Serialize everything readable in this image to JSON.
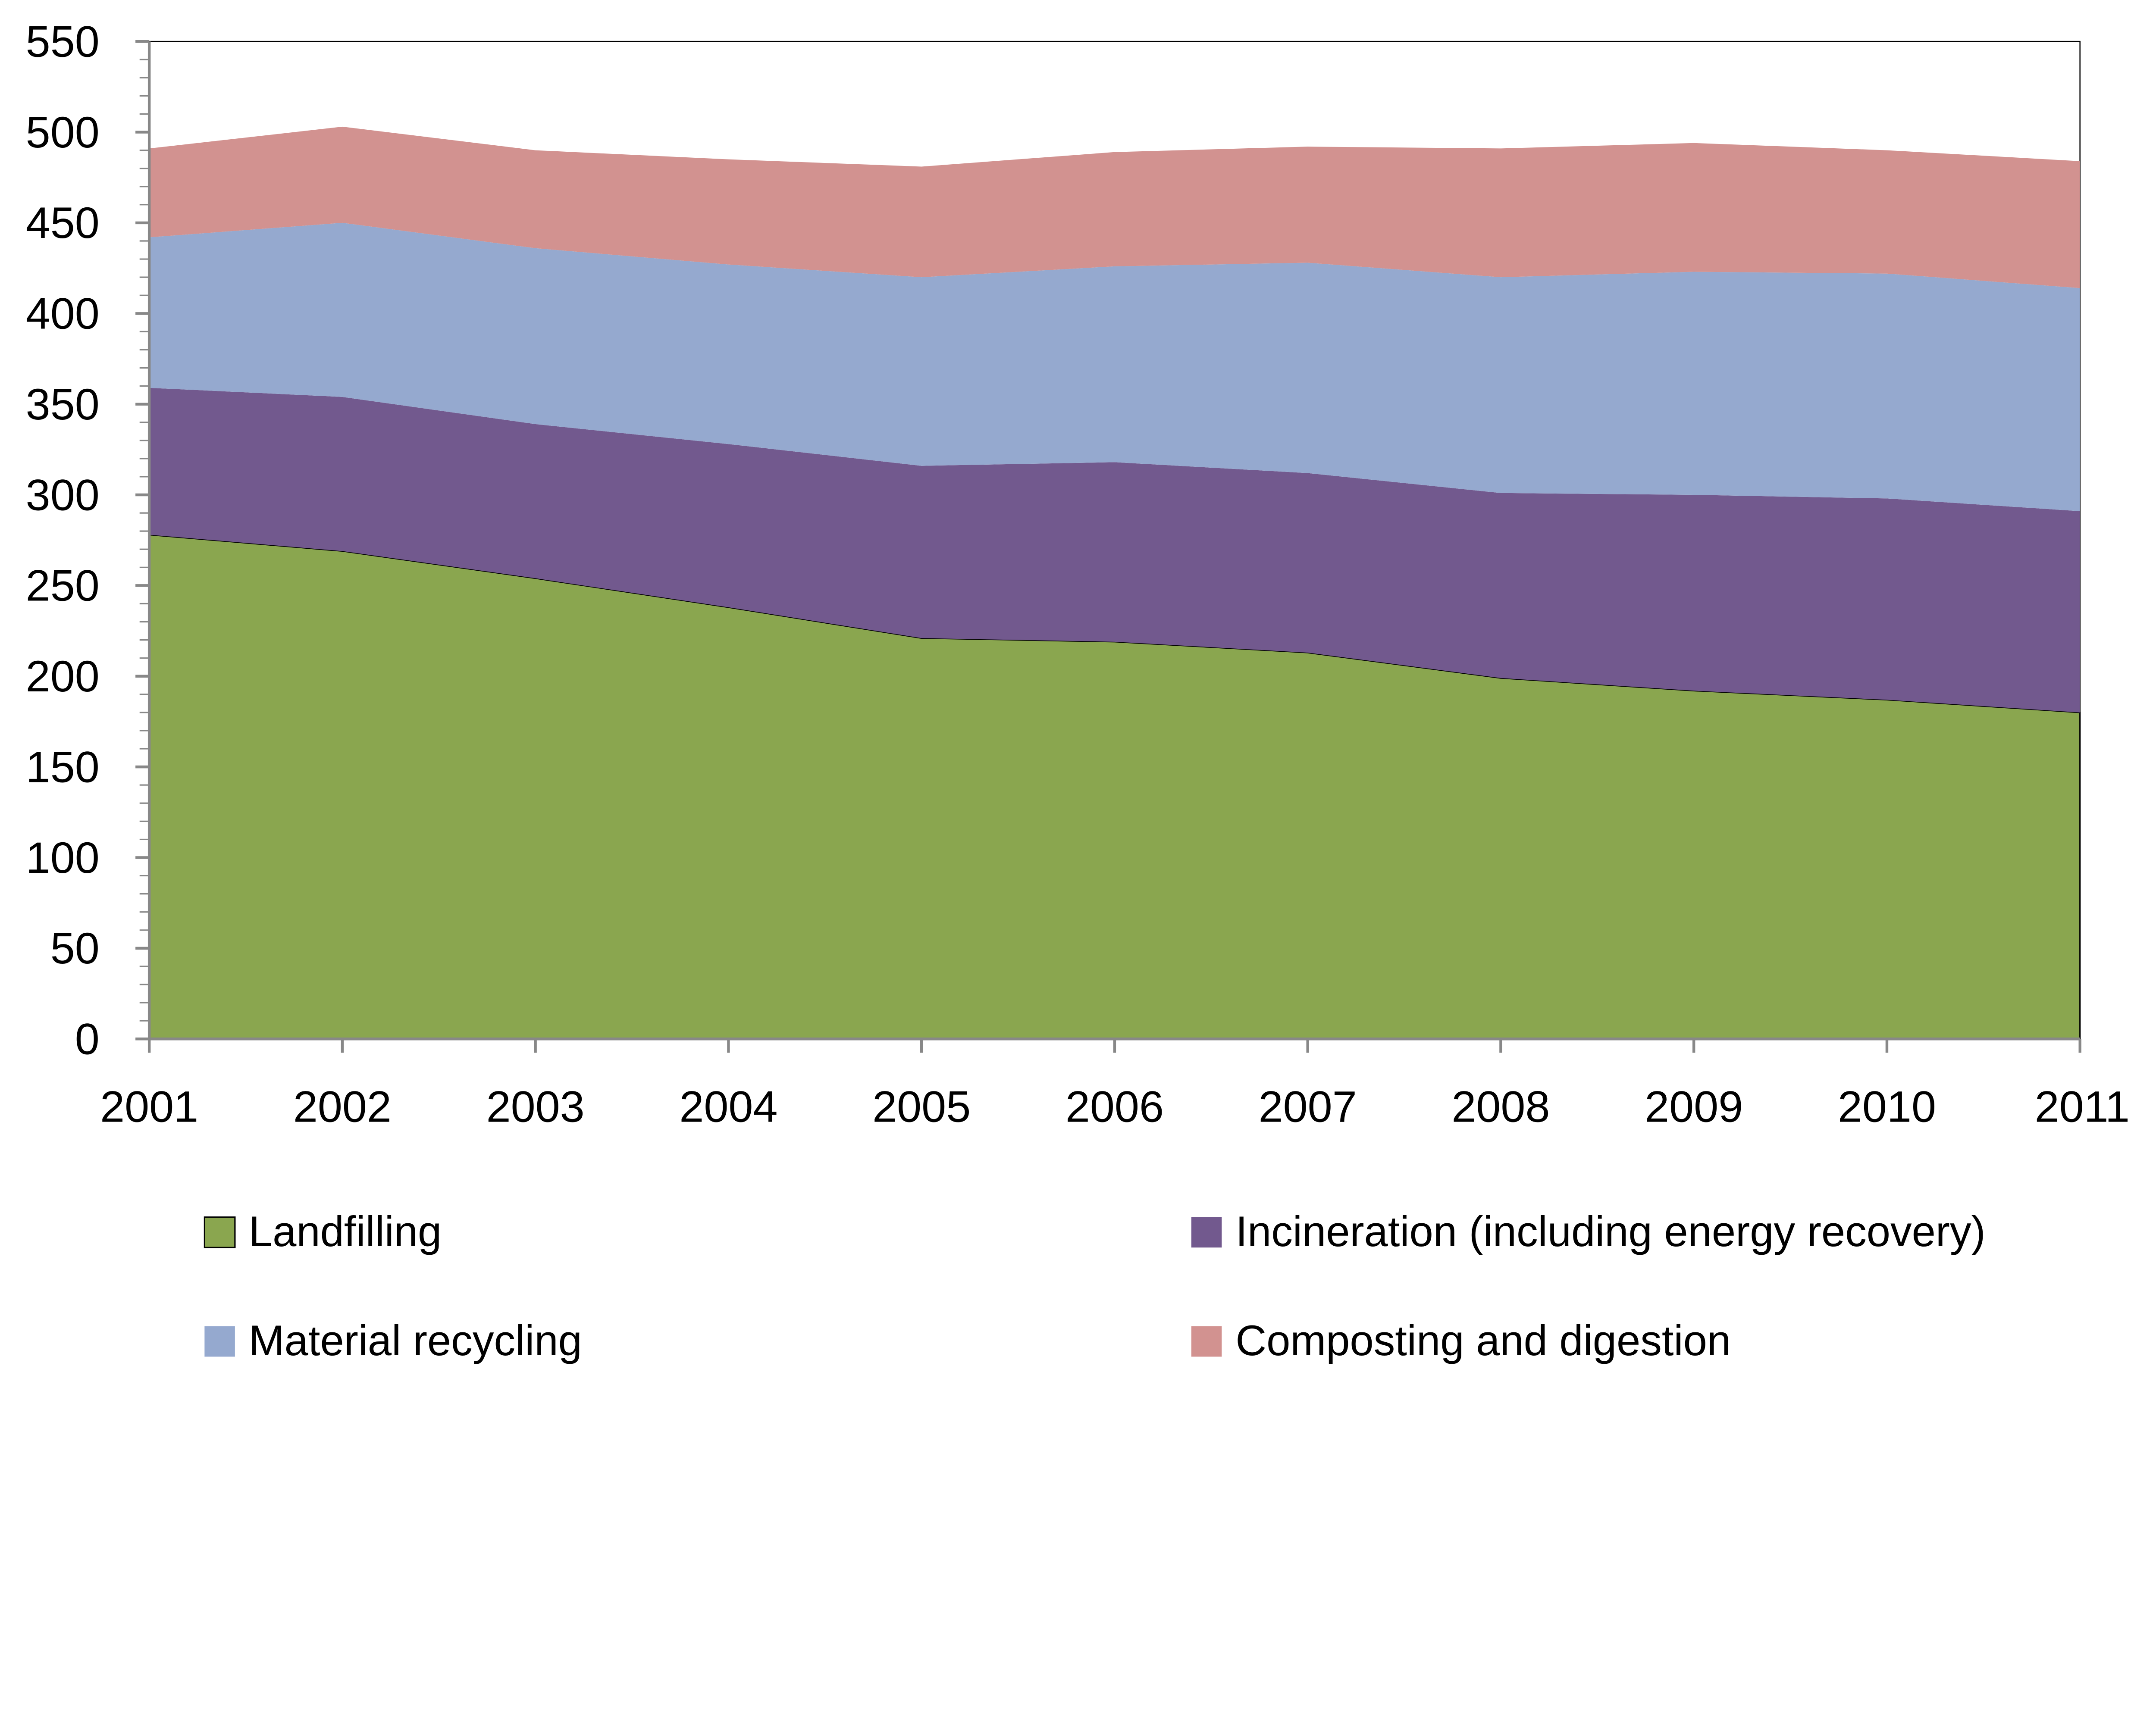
{
  "chart_data": {
    "type": "area",
    "stacked": true,
    "title": "",
    "xlabel": "",
    "ylabel": "",
    "categories": [
      "2001",
      "2002",
      "2003",
      "2004",
      "2005",
      "2006",
      "2007",
      "2008",
      "2009",
      "2010",
      "2011"
    ],
    "ylim": [
      0,
      550
    ],
    "yticks": [
      "0",
      "50",
      "100",
      "150",
      "200",
      "250",
      "300",
      "350",
      "400",
      "450",
      "500",
      "550"
    ],
    "grid": false,
    "legend_position": "bottom",
    "series": [
      {
        "name": "Landfilling",
        "color": "#8aa64f",
        "values": [
          278,
          269,
          254,
          238,
          221,
          219,
          213,
          199,
          192,
          187,
          180
        ]
      },
      {
        "name": "Incineration (including energy recovery)",
        "color": "#72598e",
        "values": [
          81,
          85,
          85,
          90,
          95,
          99,
          99,
          102,
          108,
          111,
          111
        ]
      },
      {
        "name": "Material recycling",
        "color": "#95a9cf",
        "values": [
          83,
          96,
          97,
          99,
          104,
          108,
          116,
          119,
          123,
          124,
          123
        ]
      },
      {
        "name": "Composting and digestion",
        "color": "#d29290",
        "values": [
          49,
          53,
          54,
          58,
          61,
          63,
          64,
          71,
          71,
          68,
          70
        ]
      }
    ]
  }
}
